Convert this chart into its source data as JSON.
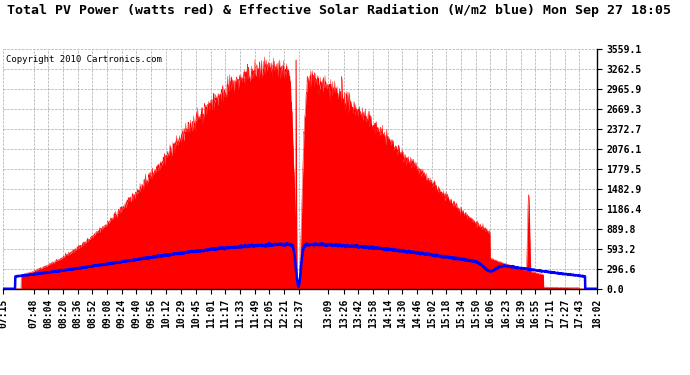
{
  "title": "Total PV Power (watts red) & Effective Solar Radiation (W/m2 blue) Mon Sep 27 18:05",
  "copyright": "Copyright 2010 Cartronics.com",
  "y_max": 3559.1,
  "y_ticks": [
    0.0,
    296.6,
    593.2,
    889.8,
    1186.4,
    1482.9,
    1779.5,
    2076.1,
    2372.7,
    2669.3,
    2965.9,
    3262.5,
    3559.1
  ],
  "x_labels": [
    "07:15",
    "07:48",
    "08:04",
    "08:20",
    "08:36",
    "08:52",
    "09:08",
    "09:24",
    "09:40",
    "09:56",
    "10:12",
    "10:29",
    "10:45",
    "11:01",
    "11:17",
    "11:33",
    "11:49",
    "12:05",
    "12:21",
    "12:37",
    "13:09",
    "13:26",
    "13:42",
    "13:58",
    "14:14",
    "14:30",
    "14:46",
    "15:02",
    "15:18",
    "15:34",
    "15:50",
    "16:06",
    "16:23",
    "16:39",
    "16:55",
    "17:11",
    "17:27",
    "17:43",
    "18:02"
  ],
  "background_color": "#ffffff",
  "grid_color": "#aaaaaa",
  "red_color": "#ff0000",
  "blue_color": "#0000ff",
  "title_fontsize": 9.5,
  "tick_fontsize": 7.0,
  "copyright_fontsize": 6.5
}
